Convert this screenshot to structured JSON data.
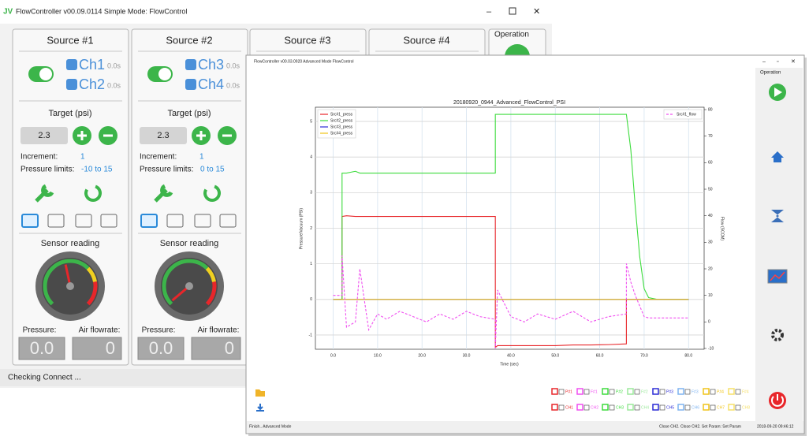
{
  "simple_window": {
    "title": "FlowController v00.09.0114   Simple Mode: FlowControl",
    "sources": [
      {
        "header": "Source #1",
        "channels": [
          {
            "name": "Ch1",
            "time": "0.0s"
          },
          {
            "name": "Ch2",
            "time": "0.0s"
          }
        ],
        "target_label": "Target (psi)",
        "target_value": "2.3",
        "increment_label": "Increment:",
        "increment_value": "1",
        "limits_label": "Pressure limits:",
        "limits_value": "-10 to 15",
        "sensor_label": "Sensor reading",
        "pressure_label": "Pressure:",
        "flow_label": "Air flowrate:",
        "pressure_value": "0.0",
        "flow_value": "0"
      },
      {
        "header": "Source #2",
        "channels": [
          {
            "name": "Ch3",
            "time": "0.0s"
          },
          {
            "name": "Ch4",
            "time": "0.0s"
          }
        ],
        "target_label": "Target (psi)",
        "target_value": "2.3",
        "increment_label": "Increment:",
        "increment_value": "1",
        "limits_label": "Pressure limits:",
        "limits_value": "0 to 15",
        "sensor_label": "Sensor reading",
        "pressure_label": "Pressure:",
        "flow_label": "Air flowrate:",
        "pressure_value": "0.0",
        "flow_value": "0"
      }
    ],
    "other_sources": [
      "Source #3",
      "Source #4"
    ],
    "operation": "Operation",
    "status": "Checking Connect ..."
  },
  "advanced_window": {
    "title": "FlowController v00.03.0920   Advanced Mode FlowControl",
    "operation": "Operation",
    "toggles_row1": [
      "P#1",
      "F#1",
      "P#2",
      "F#2",
      "P#3",
      "F#3",
      "P#4",
      "F#4"
    ],
    "toggles_row2": [
      "CH1",
      "CH2",
      "CH3",
      "CH4",
      "CH5",
      "CH6",
      "CH7",
      "CH8"
    ],
    "status": "Finish.. Advanced Mode",
    "status_right": "Close CH2. Close CH2. Set Param: Set Param",
    "timestamp": "2018-09-20 09:46:12"
  },
  "chart_data": {
    "type": "line",
    "title": "20180920_0944_Advanced_FlowControl_PSI",
    "x_label": "Time (sec)",
    "y_label": "Pressure/Vacuum (PSI)",
    "y2_label": "Flow (SCCM)",
    "x": [
      0,
      2,
      2,
      3,
      5,
      6,
      8,
      10,
      12,
      15,
      18,
      21,
      24,
      27,
      30,
      33,
      36.5,
      36.5,
      37,
      40,
      43,
      46,
      50,
      54,
      58,
      62,
      66,
      66,
      67,
      68,
      69,
      70,
      71,
      73,
      76,
      80
    ],
    "series": [
      {
        "name": "Src#1_press",
        "color": "#e8262a",
        "values": [
          0,
          0,
          2.33,
          2.35,
          2.33,
          2.33,
          2.33,
          2.33,
          2.33,
          2.33,
          2.33,
          2.33,
          2.33,
          2.33,
          2.33,
          2.33,
          2.33,
          -1.35,
          -1.3,
          -1.3,
          -1.3,
          -1.3,
          -1.3,
          -1.28,
          -1.28,
          -1.27,
          -1.25,
          0,
          0,
          0,
          0,
          0,
          0,
          0,
          0,
          0
        ]
      },
      {
        "name": "Src#2_press",
        "color": "#3ddc3d",
        "values": [
          0,
          0,
          3.55,
          3.55,
          3.6,
          3.55,
          3.55,
          3.55,
          3.55,
          3.55,
          3.55,
          3.55,
          3.55,
          3.55,
          3.55,
          3.55,
          3.55,
          5.2,
          5.2,
          5.2,
          5.2,
          5.2,
          5.2,
          5.2,
          5.2,
          5.2,
          5.2,
          5.2,
          4.2,
          2.6,
          1.2,
          0.3,
          0.05,
          0,
          0,
          0
        ]
      },
      {
        "name": "Src#3_press",
        "color": "#2b2bd6",
        "values": [
          0,
          0,
          0,
          0,
          0,
          0,
          0,
          0,
          0,
          0,
          0,
          0,
          0,
          0,
          0,
          0,
          0,
          0,
          0,
          0,
          0,
          0,
          0,
          0,
          0,
          0,
          0,
          0,
          0,
          0,
          0,
          0,
          0,
          0,
          0,
          0
        ]
      },
      {
        "name": "Src#4_press",
        "color": "#f0c419",
        "values": [
          0,
          0,
          0,
          0,
          0,
          0,
          0,
          0,
          0,
          0,
          0,
          0,
          0,
          0,
          0,
          0,
          0,
          0,
          0,
          0,
          0,
          0,
          0,
          0,
          0,
          0,
          0,
          0,
          0,
          0,
          0,
          0,
          0,
          0,
          0,
          0
        ]
      },
      {
        "name": "Src#1_flow",
        "color": "#f04ff0",
        "axis": "y2",
        "linestyle": "dashed",
        "values": [
          10,
          10,
          25,
          -2,
          0,
          20,
          -3,
          3,
          1,
          4,
          2,
          0,
          3,
          1,
          4,
          2,
          1,
          -10,
          12,
          2,
          0,
          3,
          1,
          4,
          0,
          2,
          3,
          22,
          15,
          10,
          6,
          2,
          1.5,
          1.5,
          1.5,
          1.5
        ]
      }
    ],
    "xlim": [
      -4,
      83.5
    ],
    "xticks": [
      {
        "value": 0,
        "label": "0.0"
      },
      {
        "value": 10,
        "label": "10.0"
      },
      {
        "value": 20,
        "label": "20.0"
      },
      {
        "value": 30,
        "label": "30.0"
      },
      {
        "value": 40,
        "label": "40.0"
      },
      {
        "value": 50,
        "label": "50.0"
      },
      {
        "value": 60,
        "label": "60.0"
      },
      {
        "value": 70,
        "label": "70.0"
      },
      {
        "value": 80,
        "label": "80.0"
      }
    ],
    "ylim": [
      -1.4,
      5.4
    ],
    "yticks": [
      -1,
      0,
      1,
      2,
      3,
      4,
      5
    ],
    "y2lim": [
      -10.3,
      80.9
    ],
    "y2ticks": [
      -10,
      0,
      10,
      20,
      30,
      40,
      50,
      60,
      70,
      80
    ],
    "grid": true,
    "legend": "upper left",
    "y2_legend": "upper right"
  }
}
